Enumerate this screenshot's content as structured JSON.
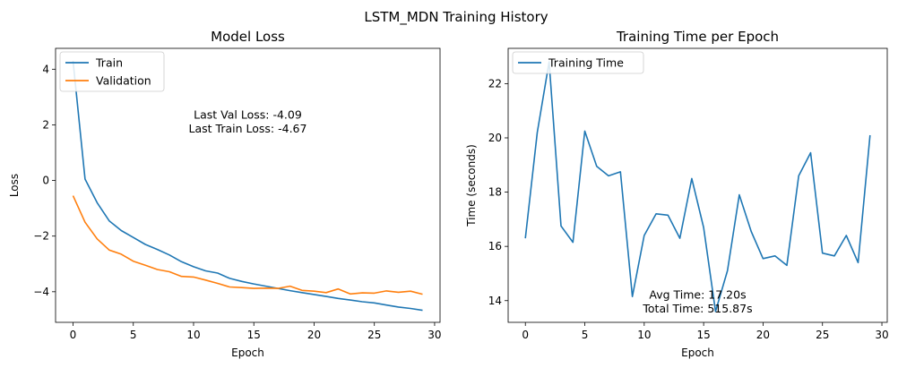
{
  "figure": {
    "suptitle": "LSTM_MDN Training History"
  },
  "chart_data": [
    {
      "type": "line",
      "title": "Model Loss",
      "xlabel": "Epoch",
      "ylabel": "Loss",
      "xlim": [
        -1.45,
        30.45
      ],
      "ylim": [
        -5.1,
        4.75
      ],
      "xticks": [
        0,
        5,
        10,
        15,
        20,
        25,
        30
      ],
      "yticks": [
        -4,
        -2,
        0,
        2,
        4
      ],
      "xtick_labels": [
        "0",
        "5",
        "10",
        "15",
        "20",
        "25",
        "30"
      ],
      "ytick_labels": [
        "−4",
        "−2",
        "0",
        "2",
        "4"
      ],
      "grid": false,
      "legend_position": "upper-left",
      "x": [
        0,
        1,
        2,
        3,
        4,
        5,
        6,
        7,
        8,
        9,
        10,
        11,
        12,
        13,
        14,
        15,
        16,
        17,
        18,
        19,
        20,
        21,
        22,
        23,
        24,
        25,
        26,
        27,
        28,
        29
      ],
      "series": [
        {
          "name": "Train",
          "color": "#1f77b4",
          "values": [
            4.3,
            0.05,
            -0.8,
            -1.45,
            -1.8,
            -2.05,
            -2.3,
            -2.48,
            -2.68,
            -2.92,
            -3.1,
            -3.25,
            -3.33,
            -3.52,
            -3.63,
            -3.72,
            -3.8,
            -3.88,
            -3.96,
            -4.03,
            -4.1,
            -4.17,
            -4.24,
            -4.3,
            -4.36,
            -4.4,
            -4.48,
            -4.55,
            -4.6,
            -4.67
          ]
        },
        {
          "name": "Validation",
          "color": "#ff7f0e",
          "values": [
            -0.55,
            -1.5,
            -2.1,
            -2.5,
            -2.65,
            -2.9,
            -3.05,
            -3.2,
            -3.28,
            -3.45,
            -3.47,
            -3.58,
            -3.7,
            -3.83,
            -3.85,
            -3.88,
            -3.87,
            -3.88,
            -3.8,
            -3.95,
            -3.98,
            -4.03,
            -3.9,
            -4.08,
            -4.04,
            -4.05,
            -3.97,
            -4.02,
            -3.98,
            -4.09
          ]
        }
      ],
      "annotations": [
        {
          "text": "Last Val Loss: -4.09",
          "color": "#ffa500",
          "x": 14.5,
          "y": 2.35
        },
        {
          "text": "Last Train Loss: -4.67",
          "color": "#0000ff",
          "x": 14.5,
          "y": 1.85
        }
      ]
    },
    {
      "type": "line",
      "title": "Training Time per Epoch",
      "xlabel": "Epoch",
      "ylabel": "Time (seconds)",
      "xlim": [
        -1.45,
        30.45
      ],
      "ylim": [
        13.2,
        23.3
      ],
      "xticks": [
        0,
        5,
        10,
        15,
        20,
        25,
        30
      ],
      "yticks": [
        14,
        16,
        18,
        20,
        22
      ],
      "xtick_labels": [
        "0",
        "5",
        "10",
        "15",
        "20",
        "25",
        "30"
      ],
      "ytick_labels": [
        "14",
        "16",
        "18",
        "20",
        "22"
      ],
      "grid": false,
      "legend_position": "upper-left",
      "x": [
        0,
        1,
        2,
        3,
        4,
        5,
        6,
        7,
        8,
        9,
        10,
        11,
        12,
        13,
        14,
        15,
        16,
        17,
        18,
        19,
        20,
        21,
        22,
        23,
        24,
        25,
        26,
        27,
        28,
        29
      ],
      "series": [
        {
          "name": "Training Time",
          "color": "#1f77b4",
          "values": [
            16.3,
            20.2,
            22.8,
            16.75,
            16.15,
            20.25,
            18.95,
            18.6,
            18.75,
            14.15,
            16.4,
            17.2,
            17.15,
            16.3,
            18.5,
            16.7,
            13.6,
            15.1,
            17.9,
            16.55,
            15.55,
            15.65,
            15.3,
            18.6,
            19.45,
            15.75,
            15.65,
            16.4,
            15.4,
            20.1
          ]
        }
      ],
      "annotations": [
        {
          "text": "Avg Time: 17.20s",
          "color": "#000000",
          "x": 14.5,
          "y": 14.2
        },
        {
          "text": "Total Time: 515.87s",
          "color": "#000000",
          "x": 14.5,
          "y": 13.7
        }
      ]
    }
  ]
}
